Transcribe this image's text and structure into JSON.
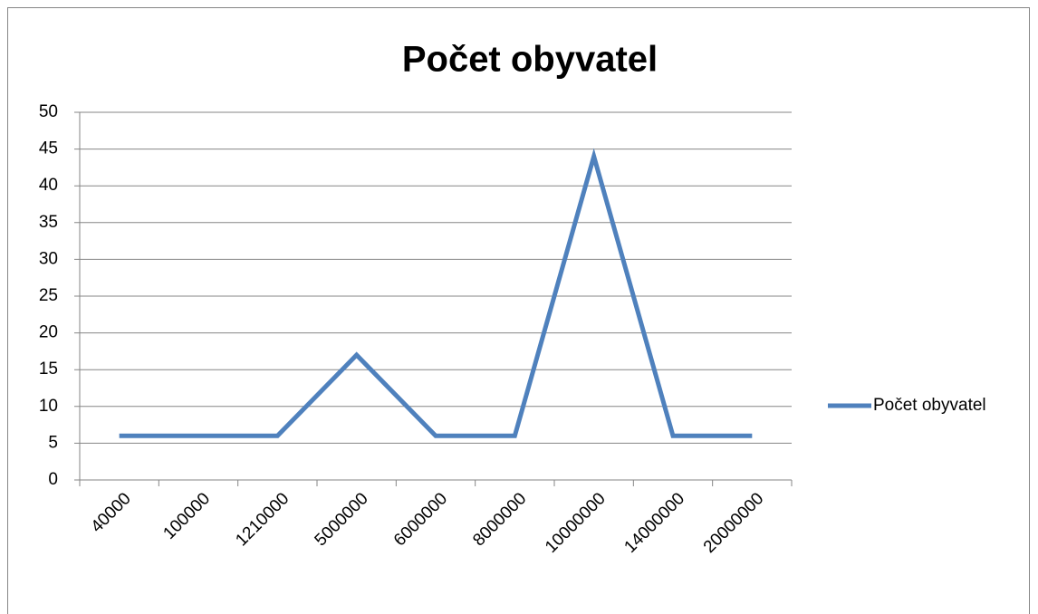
{
  "chart_data": {
    "type": "line",
    "title": "Počet obyvatel",
    "categories": [
      "40000",
      "100000",
      "1210000",
      "5000000",
      "6000000",
      "8000000",
      "10000000",
      "14000000",
      "20000000"
    ],
    "series": [
      {
        "name": "Počet obyvatel",
        "color": "#4f81bd",
        "values": [
          6,
          6,
          6,
          17,
          6,
          6,
          44,
          6,
          6
        ]
      }
    ],
    "ylim": [
      0,
      50
    ],
    "yticks": [
      0,
      5,
      10,
      15,
      20,
      25,
      30,
      35,
      40,
      45,
      50
    ],
    "grid": true,
    "legend": "right"
  }
}
